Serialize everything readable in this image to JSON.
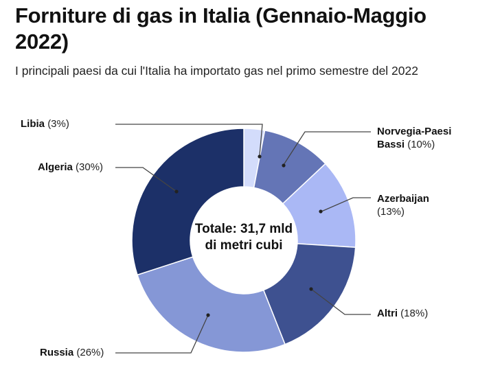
{
  "header": {
    "title": "Forniture di gas in Italia (Gennaio-Maggio 2022)",
    "subtitle": "I principali paesi da cui l'Italia ha importato gas nel primo semestre del 2022"
  },
  "center_label": {
    "line1": "Totale: 31,7 mld",
    "line2": "di metri cubi"
  },
  "labels": {
    "libia": {
      "name": "Libia",
      "pct": "(3%)"
    },
    "norvegia": {
      "name": "Norvegia-Paesi",
      "name2": "Bassi",
      "pct": "(10%)"
    },
    "azerbaijan": {
      "name": "Azerbaijan",
      "pct": "(13%)"
    },
    "altri": {
      "name": "Altri",
      "pct": "(18%)"
    },
    "russia": {
      "name": "Russia",
      "pct": "(26%)"
    },
    "algeria": {
      "name": "Algeria",
      "pct": "(30%)"
    }
  },
  "chart_data": {
    "type": "pie",
    "variant": "donut",
    "title": "Forniture di gas in Italia (Gennaio-Maggio 2022)",
    "subtitle": "I principali paesi da cui l'Italia ha importato gas nel primo semestre del 2022",
    "center_annotation": "Totale: 31,7 mld di metri cubi",
    "start_angle": "12 o'clock, clockwise",
    "categories": [
      "Libia",
      "Norvegia-Paesi Bassi",
      "Azerbaijan",
      "Altri",
      "Russia",
      "Algeria"
    ],
    "values": [
      3,
      10,
      13,
      18,
      26,
      30
    ],
    "unit": "%",
    "colors": [
      "#d3dcfb",
      "#6475b6",
      "#aab8f5",
      "#3e5190",
      "#8597d6",
      "#1c3068"
    ],
    "legend": "none (callout labels)"
  }
}
